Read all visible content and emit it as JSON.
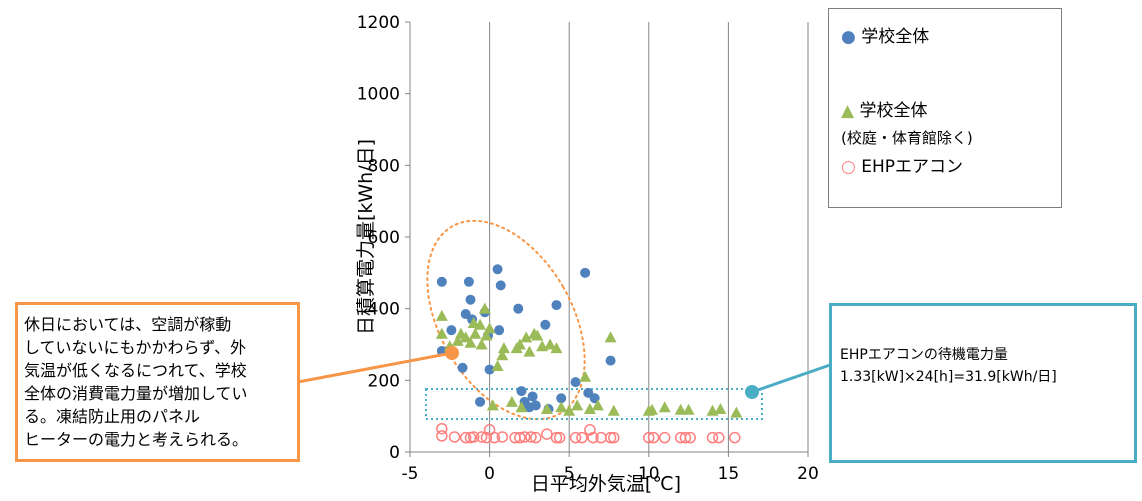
{
  "chart_data": {
    "type": "scatter",
    "xlabel": "日平均外気温[℃]",
    "ylabel": "日積算電力量[kWh/日]",
    "xlim": [
      -5,
      20
    ],
    "ylim": [
      0,
      1200
    ],
    "xticks": [
      "-5",
      "0",
      "5",
      "10",
      "15",
      "20"
    ],
    "yticks": [
      "0",
      "200",
      "400",
      "600",
      "800",
      "1000",
      "1200"
    ],
    "grid": "vertical",
    "legend_position": "top-right",
    "series": [
      {
        "name": "学校全体",
        "marker": "circle",
        "color": "#4f81bd",
        "points": [
          [
            -3.0,
            475
          ],
          [
            -3.0,
            282
          ],
          [
            -2.4,
            340
          ],
          [
            -1.7,
            235
          ],
          [
            -1.5,
            385
          ],
          [
            -1.3,
            475
          ],
          [
            -1.2,
            425
          ],
          [
            -1.1,
            370
          ],
          [
            -0.6,
            140
          ],
          [
            -0.3,
            390
          ],
          [
            -0.1,
            325
          ],
          [
            0.0,
            230
          ],
          [
            0.5,
            510
          ],
          [
            0.7,
            465
          ],
          [
            0.6,
            340
          ],
          [
            1.8,
            400
          ],
          [
            2.0,
            170
          ],
          [
            2.2,
            140
          ],
          [
            2.5,
            125
          ],
          [
            2.7,
            155
          ],
          [
            2.9,
            130
          ],
          [
            3.5,
            355
          ],
          [
            3.7,
            120
          ],
          [
            4.2,
            410
          ],
          [
            4.5,
            150
          ],
          [
            5.4,
            195
          ],
          [
            6.0,
            500
          ],
          [
            6.2,
            165
          ],
          [
            6.6,
            150
          ],
          [
            7.6,
            255
          ]
        ]
      },
      {
        "name": "学校全体",
        "name_line2": "(校庭・体育館除く)",
        "marker": "triangle",
        "color": "#9bbb59",
        "points": [
          [
            -3.0,
            380
          ],
          [
            -3.0,
            330
          ],
          [
            -2.5,
            295
          ],
          [
            -2.0,
            310
          ],
          [
            -1.8,
            330
          ],
          [
            -1.5,
            320
          ],
          [
            -1.2,
            305
          ],
          [
            -1.0,
            360
          ],
          [
            -0.9,
            330
          ],
          [
            -0.6,
            355
          ],
          [
            -0.5,
            300
          ],
          [
            -0.3,
            400
          ],
          [
            -0.2,
            325
          ],
          [
            0.0,
            345
          ],
          [
            0.2,
            130
          ],
          [
            0.5,
            240
          ],
          [
            0.8,
            270
          ],
          [
            0.9,
            290
          ],
          [
            1.4,
            140
          ],
          [
            1.7,
            290
          ],
          [
            1.9,
            300
          ],
          [
            2.0,
            125
          ],
          [
            2.3,
            320
          ],
          [
            2.5,
            280
          ],
          [
            2.8,
            330
          ],
          [
            3.0,
            325
          ],
          [
            3.3,
            295
          ],
          [
            3.6,
            120
          ],
          [
            3.8,
            300
          ],
          [
            4.2,
            290
          ],
          [
            4.5,
            125
          ],
          [
            5.0,
            115
          ],
          [
            5.5,
            130
          ],
          [
            6.0,
            210
          ],
          [
            6.3,
            120
          ],
          [
            6.8,
            130
          ],
          [
            7.6,
            320
          ],
          [
            7.8,
            115
          ],
          [
            10.0,
            115
          ],
          [
            10.2,
            118
          ],
          [
            11.0,
            125
          ],
          [
            12.0,
            118
          ],
          [
            12.5,
            118
          ],
          [
            14.0,
            115
          ],
          [
            14.5,
            120
          ],
          [
            15.5,
            110
          ]
        ]
      },
      {
        "name": "EHPエアコン",
        "marker": "circle-open",
        "color": "#ff7f7f",
        "points": [
          [
            -3.0,
            65
          ],
          [
            -3.0,
            45
          ],
          [
            -2.2,
            42
          ],
          [
            -1.5,
            40
          ],
          [
            -1.2,
            40
          ],
          [
            -1.0,
            42
          ],
          [
            -0.5,
            42
          ],
          [
            -0.2,
            40
          ],
          [
            0.0,
            62
          ],
          [
            0.3,
            40
          ],
          [
            0.8,
            42
          ],
          [
            1.6,
            40
          ],
          [
            1.9,
            40
          ],
          [
            2.2,
            42
          ],
          [
            2.6,
            42
          ],
          [
            2.9,
            40
          ],
          [
            3.6,
            50
          ],
          [
            4.2,
            40
          ],
          [
            4.4,
            40
          ],
          [
            5.4,
            40
          ],
          [
            5.8,
            40
          ],
          [
            6.3,
            62
          ],
          [
            6.5,
            40
          ],
          [
            7.0,
            40
          ],
          [
            7.6,
            40
          ],
          [
            7.8,
            40
          ],
          [
            10.0,
            40
          ],
          [
            10.3,
            40
          ],
          [
            11.0,
            40
          ],
          [
            12.0,
            40
          ],
          [
            12.3,
            40
          ],
          [
            12.6,
            40
          ],
          [
            14.0,
            40
          ],
          [
            14.4,
            40
          ],
          [
            15.4,
            40
          ]
        ]
      }
    ]
  },
  "legend": {
    "items": [
      "学校全体",
      "学校全体",
      "(校庭・体育館除く)",
      "EHPエアコン"
    ]
  },
  "callouts": {
    "left": {
      "lines": [
        "休日においては、空調が稼動",
        "していないにもかかわらず、外",
        "気温が低くなるにつれて、学校",
        "全体の消費電力量が増加してい",
        "る。凍結防止用のパネル",
        "ヒーターの電力と考えられる。"
      ],
      "color": "#f79646"
    },
    "right": {
      "lines": [
        "EHPエアコンの待機電力量",
        "1.33[kW]×24[h]=31.9[kWh/日]"
      ],
      "color": "#4bacc6"
    }
  }
}
